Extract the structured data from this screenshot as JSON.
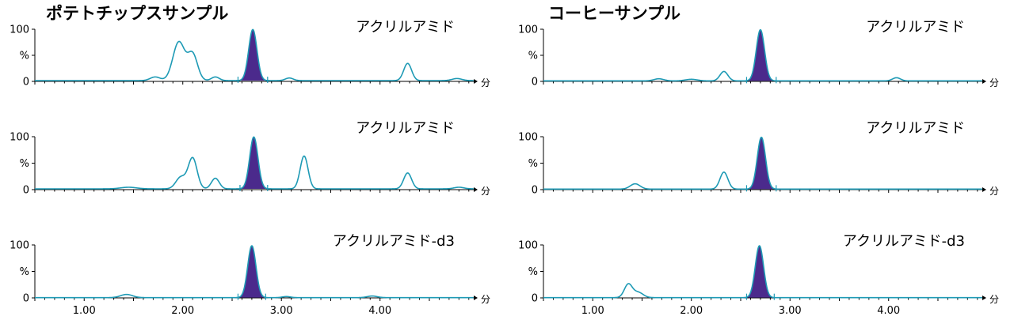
{
  "colors": {
    "trace": "#1e9ab5",
    "peak_fill": "#4b2a8c",
    "axis": "#000000"
  },
  "chart_data": {
    "type": "line",
    "x_range": [
      0.5,
      4.95
    ],
    "y_range": [
      0,
      100
    ],
    "x_ticks": [
      {
        "value": 1.0,
        "label": "1.00"
      },
      {
        "value": 2.0,
        "label": "2.00"
      },
      {
        "value": 3.0,
        "label": "3.00"
      },
      {
        "value": 4.0,
        "label": "4.00"
      }
    ],
    "y_ticks": [
      {
        "value": 100,
        "label": "100"
      },
      {
        "value": 50,
        "label": "%"
      },
      {
        "value": 0,
        "label": "0"
      }
    ],
    "x_unit": "分",
    "columns": [
      {
        "title": "ポテトチップスサンプル",
        "panels": [
          {
            "label": "アクリルアミド",
            "baseline": 1.5,
            "peaks": [
              {
                "rt": 1.72,
                "height": 7,
                "width": 0.05
              },
              {
                "rt": 1.96,
                "height": 74,
                "width": 0.06
              },
              {
                "rt": 2.1,
                "height": 50,
                "width": 0.05
              },
              {
                "rt": 2.33,
                "height": 7,
                "width": 0.04
              },
              {
                "rt": 2.71,
                "height": 98,
                "width": 0.042
              },
              {
                "rt": 3.08,
                "height": 5,
                "width": 0.04
              },
              {
                "rt": 4.28,
                "height": 33,
                "width": 0.04
              },
              {
                "rt": 4.78,
                "height": 4,
                "width": 0.05
              }
            ],
            "shaded": [
              2.56,
              2.86
            ]
          },
          {
            "label": "アクリルアミド",
            "baseline": 1.5,
            "peaks": [
              {
                "rt": 1.45,
                "height": 3,
                "width": 0.08
              },
              {
                "rt": 1.98,
                "height": 22,
                "width": 0.05
              },
              {
                "rt": 2.1,
                "height": 58,
                "width": 0.045
              },
              {
                "rt": 2.33,
                "height": 20,
                "width": 0.04
              },
              {
                "rt": 2.72,
                "height": 98,
                "width": 0.042
              },
              {
                "rt": 3.23,
                "height": 62,
                "width": 0.04
              },
              {
                "rt": 4.28,
                "height": 30,
                "width": 0.04
              },
              {
                "rt": 4.8,
                "height": 3,
                "width": 0.05
              }
            ],
            "shaded": [
              2.58,
              2.86
            ]
          },
          {
            "label": "アクリルアミド-d3",
            "baseline": 0.5,
            "peaks": [
              {
                "rt": 1.43,
                "height": 6,
                "width": 0.06
              },
              {
                "rt": 2.7,
                "height": 98,
                "width": 0.042
              },
              {
                "rt": 3.05,
                "height": 2,
                "width": 0.04
              },
              {
                "rt": 3.92,
                "height": 3,
                "width": 0.05
              }
            ],
            "shaded": [
              2.56,
              2.84
            ]
          }
        ]
      },
      {
        "title": "コーヒーサンプル",
        "panels": [
          {
            "label": "アクリルアミド",
            "baseline": 1.0,
            "peaks": [
              {
                "rt": 1.67,
                "height": 4,
                "width": 0.05
              },
              {
                "rt": 2.0,
                "height": 3,
                "width": 0.06
              },
              {
                "rt": 2.33,
                "height": 18,
                "width": 0.04
              },
              {
                "rt": 2.7,
                "height": 98,
                "width": 0.042
              },
              {
                "rt": 4.08,
                "height": 6,
                "width": 0.04
              }
            ],
            "shaded": [
              2.56,
              2.86
            ]
          },
          {
            "label": "アクリルアミド",
            "baseline": 1.0,
            "peaks": [
              {
                "rt": 1.43,
                "height": 10,
                "width": 0.05
              },
              {
                "rt": 2.33,
                "height": 32,
                "width": 0.04
              },
              {
                "rt": 2.71,
                "height": 98,
                "width": 0.042
              }
            ],
            "shaded": [
              2.56,
              2.86
            ]
          },
          {
            "label": "アクリルアミド-d3",
            "baseline": 0.5,
            "peaks": [
              {
                "rt": 1.36,
                "height": 25,
                "width": 0.04
              },
              {
                "rt": 1.46,
                "height": 10,
                "width": 0.05
              },
              {
                "rt": 2.69,
                "height": 98,
                "width": 0.042
              }
            ],
            "shaded": [
              2.56,
              2.84
            ]
          }
        ]
      }
    ]
  }
}
